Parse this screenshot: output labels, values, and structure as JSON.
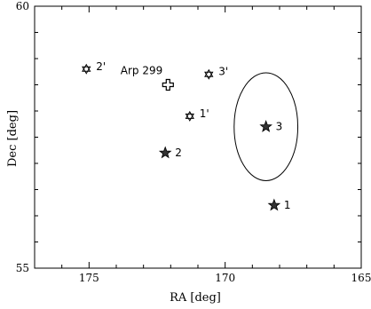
{
  "chart_data": {
    "type": "scatter",
    "xlabel": "RA [deg]",
    "ylabel": "Dec [deg]",
    "xlim": [
      177,
      165
    ],
    "ylim": [
      55,
      60
    ],
    "x_ticks": [
      "175",
      "170",
      "165"
    ],
    "y_ticks": [
      "55",
      "60"
    ],
    "x_tick_values": [
      175,
      170,
      165
    ],
    "y_tick_values": [
      55,
      60
    ],
    "x_minor_step": 1,
    "y_minor_step": 0.5,
    "grid": false,
    "points": [
      {
        "label": "1",
        "x": 168.2,
        "y": 56.2,
        "marker": "filled-star"
      },
      {
        "label": "2",
        "x": 172.2,
        "y": 57.2,
        "marker": "filled-star"
      },
      {
        "label": "3",
        "x": 168.5,
        "y": 57.7,
        "marker": "filled-star"
      },
      {
        "label": "1'",
        "x": 171.3,
        "y": 57.9,
        "marker": "open-star"
      },
      {
        "label": "2'",
        "x": 175.1,
        "y": 58.8,
        "marker": "open-star"
      },
      {
        "label": "3'",
        "x": 170.6,
        "y": 58.7,
        "marker": "open-star"
      },
      {
        "label": "Arp 299",
        "x": 172.1,
        "y": 58.5,
        "marker": "open-cross"
      }
    ],
    "circle": {
      "center_x": 168.5,
      "center_y": 57.7,
      "radius_deg": 1.17
    }
  }
}
